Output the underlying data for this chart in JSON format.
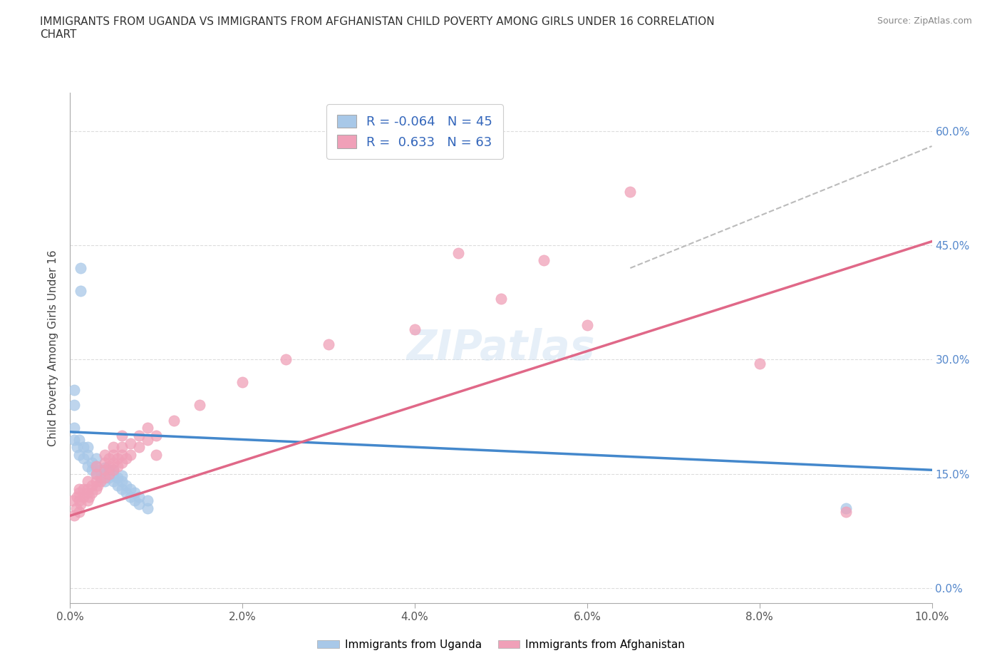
{
  "title": "IMMIGRANTS FROM UGANDA VS IMMIGRANTS FROM AFGHANISTAN CHILD POVERTY AMONG GIRLS UNDER 16 CORRELATION\nCHART",
  "source": "Source: ZipAtlas.com",
  "ylabel": "Child Poverty Among Girls Under 16",
  "watermark": "ZIPatlas",
  "xlim": [
    0.0,
    0.1
  ],
  "ylim": [
    -0.02,
    0.65
  ],
  "x_tick_vals": [
    0.0,
    0.02,
    0.04,
    0.06,
    0.08,
    0.1
  ],
  "x_tick_labels": [
    "0.0%",
    "2.0%",
    "4.0%",
    "6.0%",
    "8.0%",
    "10.0%"
  ],
  "y_tick_vals": [
    0.0,
    0.15,
    0.3,
    0.45,
    0.6
  ],
  "y_tick_labels": [
    "0.0%",
    "15.0%",
    "30.0%",
    "45.0%",
    "60.0%"
  ],
  "uganda_color": "#a8c8e8",
  "afghanistan_color": "#f0a0b8",
  "uganda_line_color": "#4488cc",
  "afghanistan_line_color": "#e06888",
  "legend_label_uganda": "R = -0.064   N = 45",
  "legend_label_afghanistan": "R =  0.633   N = 63",
  "bottom_legend_uganda": "Immigrants from Uganda",
  "bottom_legend_afghanistan": "Immigrants from Afghanistan",
  "uganda_scatter": [
    [
      0.0005,
      0.195
    ],
    [
      0.0005,
      0.21
    ],
    [
      0.0005,
      0.24
    ],
    [
      0.0005,
      0.26
    ],
    [
      0.0008,
      0.185
    ],
    [
      0.001,
      0.175
    ],
    [
      0.001,
      0.195
    ],
    [
      0.0012,
      0.39
    ],
    [
      0.0012,
      0.42
    ],
    [
      0.0015,
      0.17
    ],
    [
      0.0015,
      0.185
    ],
    [
      0.002,
      0.16
    ],
    [
      0.002,
      0.175
    ],
    [
      0.002,
      0.185
    ],
    [
      0.0025,
      0.155
    ],
    [
      0.0025,
      0.165
    ],
    [
      0.003,
      0.15
    ],
    [
      0.003,
      0.16
    ],
    [
      0.003,
      0.17
    ],
    [
      0.0035,
      0.145
    ],
    [
      0.0035,
      0.155
    ],
    [
      0.004,
      0.14
    ],
    [
      0.004,
      0.15
    ],
    [
      0.004,
      0.158
    ],
    [
      0.0045,
      0.145
    ],
    [
      0.0045,
      0.155
    ],
    [
      0.005,
      0.14
    ],
    [
      0.005,
      0.148
    ],
    [
      0.005,
      0.155
    ],
    [
      0.0055,
      0.135
    ],
    [
      0.0055,
      0.145
    ],
    [
      0.006,
      0.13
    ],
    [
      0.006,
      0.14
    ],
    [
      0.006,
      0.148
    ],
    [
      0.0065,
      0.125
    ],
    [
      0.0065,
      0.135
    ],
    [
      0.007,
      0.12
    ],
    [
      0.007,
      0.13
    ],
    [
      0.0075,
      0.115
    ],
    [
      0.0075,
      0.125
    ],
    [
      0.008,
      0.11
    ],
    [
      0.008,
      0.12
    ],
    [
      0.009,
      0.105
    ],
    [
      0.009,
      0.115
    ],
    [
      0.09,
      0.105
    ]
  ],
  "afghanistan_scatter": [
    [
      0.0003,
      0.115
    ],
    [
      0.0005,
      0.095
    ],
    [
      0.0007,
      0.105
    ],
    [
      0.0008,
      0.12
    ],
    [
      0.001,
      0.1
    ],
    [
      0.001,
      0.115
    ],
    [
      0.001,
      0.125
    ],
    [
      0.001,
      0.13
    ],
    [
      0.0012,
      0.11
    ],
    [
      0.0015,
      0.12
    ],
    [
      0.0015,
      0.13
    ],
    [
      0.002,
      0.115
    ],
    [
      0.002,
      0.125
    ],
    [
      0.002,
      0.13
    ],
    [
      0.002,
      0.14
    ],
    [
      0.0022,
      0.12
    ],
    [
      0.0025,
      0.125
    ],
    [
      0.0025,
      0.135
    ],
    [
      0.003,
      0.13
    ],
    [
      0.003,
      0.14
    ],
    [
      0.003,
      0.15
    ],
    [
      0.003,
      0.16
    ],
    [
      0.0032,
      0.135
    ],
    [
      0.0035,
      0.14
    ],
    [
      0.004,
      0.145
    ],
    [
      0.004,
      0.155
    ],
    [
      0.004,
      0.165
    ],
    [
      0.004,
      0.175
    ],
    [
      0.0045,
      0.15
    ],
    [
      0.0045,
      0.16
    ],
    [
      0.0045,
      0.17
    ],
    [
      0.005,
      0.155
    ],
    [
      0.005,
      0.165
    ],
    [
      0.005,
      0.175
    ],
    [
      0.005,
      0.185
    ],
    [
      0.0055,
      0.16
    ],
    [
      0.0055,
      0.17
    ],
    [
      0.006,
      0.165
    ],
    [
      0.006,
      0.175
    ],
    [
      0.006,
      0.185
    ],
    [
      0.006,
      0.2
    ],
    [
      0.0065,
      0.17
    ],
    [
      0.007,
      0.175
    ],
    [
      0.007,
      0.19
    ],
    [
      0.008,
      0.185
    ],
    [
      0.008,
      0.2
    ],
    [
      0.009,
      0.195
    ],
    [
      0.009,
      0.21
    ],
    [
      0.01,
      0.175
    ],
    [
      0.01,
      0.2
    ],
    [
      0.012,
      0.22
    ],
    [
      0.015,
      0.24
    ],
    [
      0.02,
      0.27
    ],
    [
      0.025,
      0.3
    ],
    [
      0.03,
      0.32
    ],
    [
      0.04,
      0.34
    ],
    [
      0.045,
      0.44
    ],
    [
      0.05,
      0.38
    ],
    [
      0.055,
      0.43
    ],
    [
      0.06,
      0.345
    ],
    [
      0.065,
      0.52
    ],
    [
      0.08,
      0.295
    ],
    [
      0.09,
      0.1
    ]
  ],
  "dashed_line": [
    [
      0.065,
      0.42
    ],
    [
      0.1,
      0.58
    ]
  ]
}
